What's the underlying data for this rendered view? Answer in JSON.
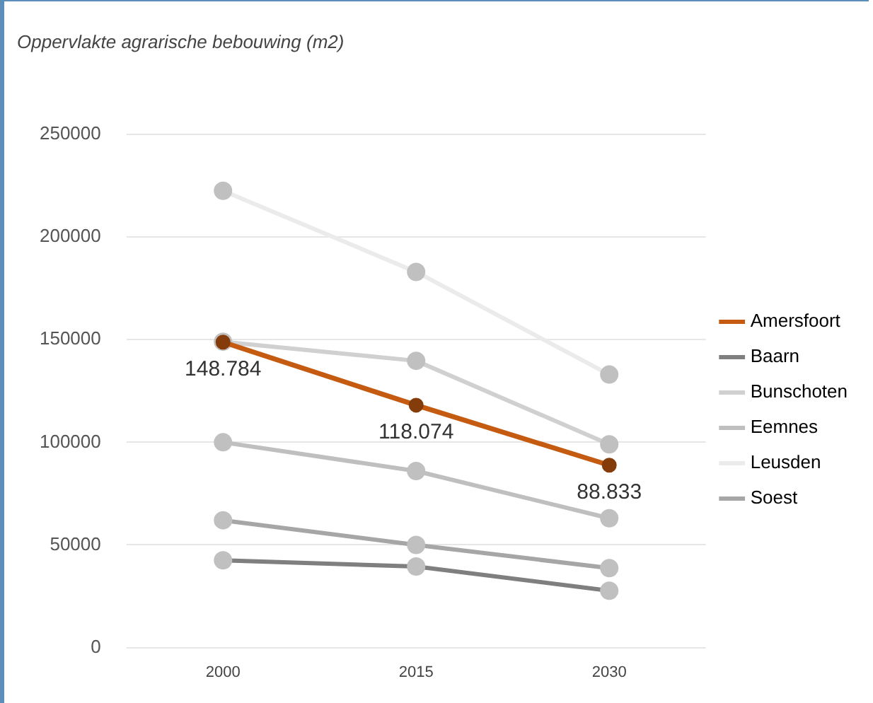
{
  "chart_data": {
    "type": "line",
    "title": "Oppervlakte agrarische bebouwing (m2)",
    "categories": [
      "2000",
      "2015",
      "2030"
    ],
    "series": [
      {
        "name": "Amersfoort",
        "color": "#c55a11",
        "values": [
          148784,
          118074,
          88833
        ],
        "value_labels": [
          "148.784",
          "118.074",
          "88.833"
        ]
      },
      {
        "name": "Baarn",
        "color": "#7f7f7f",
        "values": [
          42500,
          39500,
          27700
        ]
      },
      {
        "name": "Bunschoten",
        "color": "#d0d0d0",
        "values": [
          149000,
          139700,
          99000
        ]
      },
      {
        "name": "Eemnes",
        "color": "#bfbfbf",
        "values": [
          100000,
          86000,
          63000
        ]
      },
      {
        "name": "Leusden",
        "color": "#ebebeb",
        "values": [
          222500,
          183000,
          133000
        ]
      },
      {
        "name": "Soest",
        "color": "#a6a6a6",
        "values": [
          62000,
          50000,
          38700
        ]
      }
    ],
    "ylim": [
      0,
      250000
    ],
    "yticks": [
      0,
      50000,
      100000,
      150000,
      200000,
      250000
    ],
    "grid": "y",
    "legend": "right",
    "marker": "circle"
  }
}
